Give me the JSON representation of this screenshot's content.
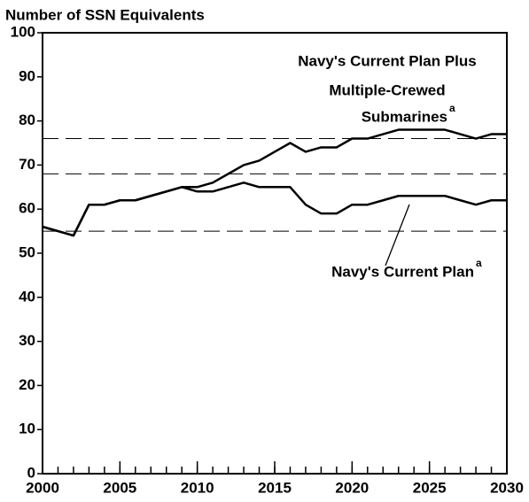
{
  "chart_data": {
    "type": "line",
    "y_axis_label": "Number of SSN Equivalents",
    "x": [
      2000,
      2001,
      2002,
      2003,
      2004,
      2005,
      2006,
      2007,
      2008,
      2009,
      2010,
      2011,
      2012,
      2013,
      2014,
      2015,
      2016,
      2017,
      2018,
      2019,
      2020,
      2021,
      2022,
      2023,
      2024,
      2025,
      2026,
      2027,
      2028,
      2029,
      2030
    ],
    "series": [
      {
        "label": [
          "Navy's Current Plan Plus",
          "Multiple-Crewed",
          "Submarines"
        ],
        "note": "a",
        "color": "#000000",
        "values": [
          56,
          55,
          54,
          61,
          61,
          62,
          62,
          63,
          64,
          65,
          65,
          66,
          68,
          70,
          71,
          73,
          75,
          73,
          74,
          74,
          76,
          76,
          77,
          78,
          78,
          78,
          78,
          77,
          76,
          77,
          77
        ]
      },
      {
        "label": [
          "Navy's Current Plan"
        ],
        "note": "a",
        "color": "#000000",
        "values": [
          56,
          55,
          54,
          61,
          61,
          62,
          62,
          63,
          64,
          65,
          64,
          64,
          65,
          66,
          65,
          65,
          65,
          61,
          59,
          59,
          61,
          61,
          62,
          63,
          63,
          63,
          63,
          62,
          61,
          62,
          62
        ]
      }
    ],
    "reference_lines": [
      76,
      68,
      55
    ],
    "xlim": [
      2000,
      2030
    ],
    "xticks": [
      2000,
      2005,
      2010,
      2015,
      2020,
      2025,
      2030
    ],
    "ylim": [
      0,
      100
    ],
    "yticks": [
      0,
      10,
      20,
      30,
      40,
      50,
      60,
      70,
      80,
      90,
      100
    ],
    "grid": false
  }
}
